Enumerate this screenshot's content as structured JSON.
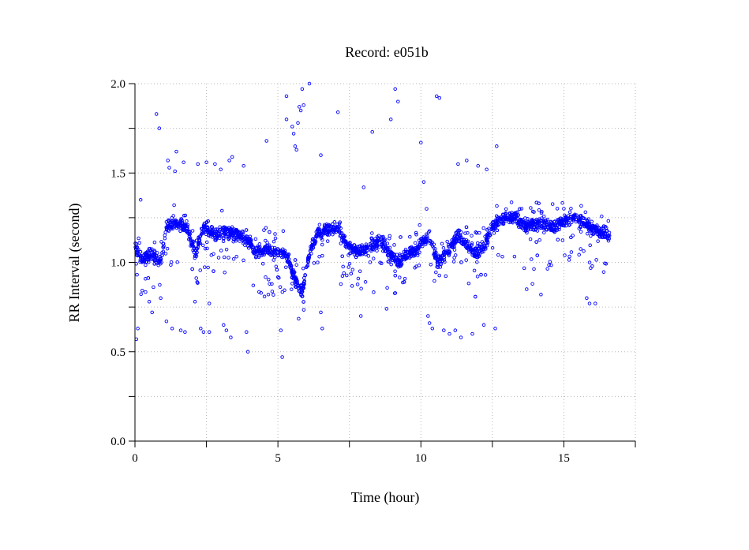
{
  "chart_data": {
    "type": "scatter",
    "title": "Record:  e051b",
    "xlabel": "Time (hour)",
    "ylabel": "RR Interval (second)",
    "xlim": [
      0,
      17.5
    ],
    "ylim": [
      0,
      2.0
    ],
    "x_ticks": [
      0,
      5,
      10,
      15
    ],
    "x_tick_labels": [
      "0",
      "5",
      "10",
      "15"
    ],
    "y_ticks": [
      0.0,
      0.5,
      1.0,
      1.5,
      2.0
    ],
    "y_tick_labels": [
      "0.0",
      "0.5",
      "1.0",
      "1.5",
      "2.0"
    ],
    "x_minor_ticks": [
      2.5,
      7.5,
      12.5,
      17.5
    ],
    "y_minor_ticks": [
      0.25,
      0.75,
      1.25,
      1.75
    ],
    "grid": true,
    "marker_color": "#0000ff",
    "marker": "circle",
    "series": [
      {
        "values_note_free": true,
        "trend": [
          [
            0.0,
            1.08
          ],
          [
            0.3,
            1.02
          ],
          [
            0.6,
            1.05
          ],
          [
            0.9,
            1.0
          ],
          [
            1.1,
            1.2
          ],
          [
            1.4,
            1.22
          ],
          [
            1.8,
            1.2
          ],
          [
            2.1,
            1.05
          ],
          [
            2.4,
            1.2
          ],
          [
            2.8,
            1.15
          ],
          [
            3.2,
            1.17
          ],
          [
            3.6,
            1.15
          ],
          [
            3.9,
            1.14
          ],
          [
            4.2,
            1.06
          ],
          [
            4.6,
            1.07
          ],
          [
            5.0,
            1.05
          ],
          [
            5.3,
            1.04
          ],
          [
            5.6,
            0.9
          ],
          [
            5.85,
            0.84
          ],
          [
            6.1,
            1.05
          ],
          [
            6.4,
            1.17
          ],
          [
            6.8,
            1.19
          ],
          [
            7.1,
            1.2
          ],
          [
            7.4,
            1.1
          ],
          [
            7.8,
            1.06
          ],
          [
            8.2,
            1.08
          ],
          [
            8.6,
            1.12
          ],
          [
            8.9,
            1.05
          ],
          [
            9.2,
            1.0
          ],
          [
            9.6,
            1.05
          ],
          [
            10.0,
            1.1
          ],
          [
            10.3,
            1.15
          ],
          [
            10.6,
            1.0
          ],
          [
            10.9,
            1.05
          ],
          [
            11.3,
            1.15
          ],
          [
            11.6,
            1.1
          ],
          [
            11.9,
            1.05
          ],
          [
            12.2,
            1.08
          ],
          [
            12.5,
            1.2
          ],
          [
            12.9,
            1.25
          ],
          [
            13.3,
            1.25
          ],
          [
            13.7,
            1.2
          ],
          [
            14.1,
            1.22
          ],
          [
            14.5,
            1.2
          ],
          [
            14.9,
            1.22
          ],
          [
            15.2,
            1.25
          ],
          [
            15.6,
            1.24
          ],
          [
            15.9,
            1.2
          ],
          [
            16.3,
            1.17
          ],
          [
            16.6,
            1.15
          ]
        ],
        "outliers": [
          [
            0.05,
            0.57
          ],
          [
            0.1,
            0.63
          ],
          [
            0.2,
            1.35
          ],
          [
            0.5,
            0.78
          ],
          [
            0.6,
            0.72
          ],
          [
            0.75,
            1.83
          ],
          [
            0.85,
            1.75
          ],
          [
            0.9,
            0.8
          ],
          [
            1.1,
            0.67
          ],
          [
            1.15,
            1.57
          ],
          [
            1.2,
            1.53
          ],
          [
            1.3,
            0.63
          ],
          [
            1.4,
            1.51
          ],
          [
            1.45,
            1.62
          ],
          [
            1.6,
            0.62
          ],
          [
            1.7,
            1.56
          ],
          [
            1.75,
            0.61
          ],
          [
            2.1,
            0.78
          ],
          [
            2.2,
            1.55
          ],
          [
            2.3,
            0.63
          ],
          [
            2.4,
            0.61
          ],
          [
            2.5,
            1.56
          ],
          [
            2.6,
            0.61
          ],
          [
            2.6,
            0.77
          ],
          [
            2.8,
            1.55
          ],
          [
            3.0,
            1.52
          ],
          [
            3.1,
            0.65
          ],
          [
            3.2,
            0.62
          ],
          [
            3.3,
            1.57
          ],
          [
            3.35,
            0.58
          ],
          [
            3.4,
            1.59
          ],
          [
            3.8,
            1.54
          ],
          [
            3.9,
            0.61
          ],
          [
            3.95,
            0.5
          ],
          [
            4.6,
            1.68
          ],
          [
            5.1,
            0.62
          ],
          [
            5.15,
            0.47
          ],
          [
            5.3,
            1.93
          ],
          [
            5.3,
            1.8
          ],
          [
            5.5,
            1.76
          ],
          [
            5.55,
            1.72
          ],
          [
            5.6,
            1.65
          ],
          [
            5.65,
            1.63
          ],
          [
            5.7,
            1.78
          ],
          [
            5.75,
            1.87
          ],
          [
            5.8,
            1.85
          ],
          [
            5.85,
            1.97
          ],
          [
            5.9,
            1.88
          ],
          [
            6.1,
            2.0
          ],
          [
            6.5,
            1.6
          ],
          [
            6.5,
            0.72
          ],
          [
            6.55,
            0.63
          ],
          [
            7.1,
            1.84
          ],
          [
            7.9,
            0.7
          ],
          [
            8.0,
            1.42
          ],
          [
            8.3,
            1.73
          ],
          [
            8.8,
            0.74
          ],
          [
            8.95,
            1.8
          ],
          [
            9.1,
            1.97
          ],
          [
            9.2,
            1.9
          ],
          [
            10.0,
            1.67
          ],
          [
            10.1,
            1.45
          ],
          [
            10.2,
            1.3
          ],
          [
            10.25,
            0.7
          ],
          [
            10.3,
            0.66
          ],
          [
            10.4,
            0.63
          ],
          [
            10.55,
            1.93
          ],
          [
            10.65,
            1.92
          ],
          [
            10.8,
            0.62
          ],
          [
            11.0,
            0.6
          ],
          [
            11.2,
            0.62
          ],
          [
            11.3,
            1.55
          ],
          [
            11.4,
            0.58
          ],
          [
            11.6,
            1.57
          ],
          [
            11.8,
            0.6
          ],
          [
            12.0,
            1.54
          ],
          [
            12.2,
            0.65
          ],
          [
            12.3,
            1.52
          ],
          [
            12.6,
            0.63
          ],
          [
            12.65,
            1.65
          ],
          [
            13.7,
            0.85
          ],
          [
            13.9,
            0.88
          ],
          [
            14.2,
            0.82
          ],
          [
            15.8,
            0.8
          ],
          [
            15.9,
            0.77
          ],
          [
            16.1,
            0.77
          ]
        ],
        "spread": 0.06
      }
    ]
  }
}
